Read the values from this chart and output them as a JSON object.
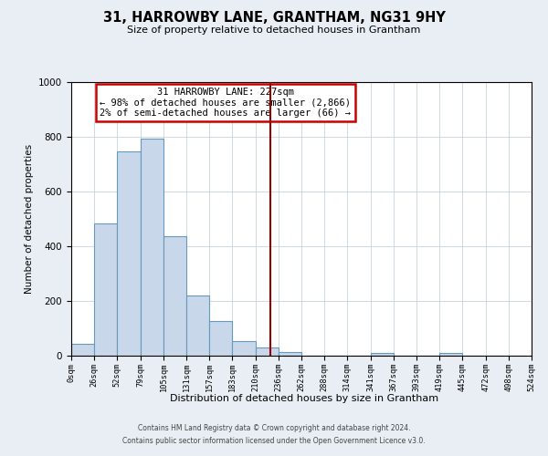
{
  "title": "31, HARROWBY LANE, GRANTHAM, NG31 9HY",
  "subtitle": "Size of property relative to detached houses in Grantham",
  "xlabel": "Distribution of detached houses by size in Grantham",
  "ylabel": "Number of detached properties",
  "bin_edges": [
    0,
    26,
    52,
    79,
    105,
    131,
    157,
    183,
    210,
    236,
    262,
    288,
    314,
    341,
    367,
    393,
    419,
    445,
    472,
    498,
    524
  ],
  "bin_heights": [
    45,
    485,
    748,
    793,
    437,
    220,
    127,
    55,
    30,
    15,
    0,
    0,
    0,
    10,
    0,
    0,
    10,
    0,
    0,
    0
  ],
  "bar_facecolor": "#c8d8ea",
  "bar_edgecolor": "#6699bb",
  "vline_x": 227,
  "vline_color": "#990000",
  "annotation_title": "31 HARROWBY LANE: 227sqm",
  "annotation_line1": "← 98% of detached houses are smaller (2,866)",
  "annotation_line2": "2% of semi-detached houses are larger (66) →",
  "annotation_box_edgecolor": "#cc0000",
  "annotation_box_facecolor": "#ffffff",
  "ylim": [
    0,
    1000
  ],
  "tick_labels": [
    "0sqm",
    "26sqm",
    "52sqm",
    "79sqm",
    "105sqm",
    "131sqm",
    "157sqm",
    "183sqm",
    "210sqm",
    "236sqm",
    "262sqm",
    "288sqm",
    "314sqm",
    "341sqm",
    "367sqm",
    "393sqm",
    "419sqm",
    "445sqm",
    "472sqm",
    "498sqm",
    "524sqm"
  ],
  "footer_line1": "Contains HM Land Registry data © Crown copyright and database right 2024.",
  "footer_line2": "Contains public sector information licensed under the Open Government Licence v3.0.",
  "background_color": "#e8eef4",
  "plot_background_color": "#ffffff",
  "grid_color": "#c8d4dc"
}
